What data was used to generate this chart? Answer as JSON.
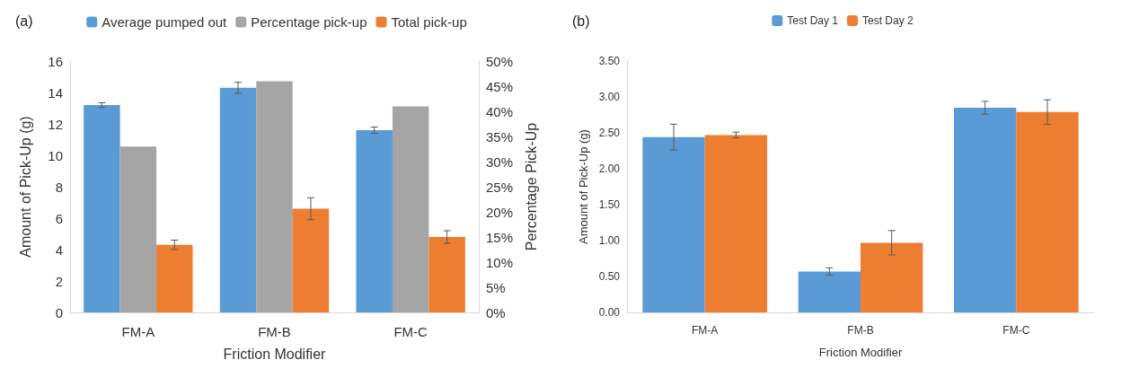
{
  "chart_data": [
    {
      "type": "bar",
      "title": "(a)",
      "xlabel": "Friction Modifier",
      "ylabel": "Amount of Pick-Up (g)",
      "y2label": "Percentage Pick-Up",
      "categories": [
        "FM-A",
        "FM-B",
        "FM-C"
      ],
      "series": [
        {
          "name": "Average pumped out",
          "color": "#5b9bd5",
          "values": [
            13.2,
            14.3,
            11.6
          ],
          "errors": [
            0.15,
            0.35,
            0.2
          ]
        },
        {
          "name": "Percentage pick-up",
          "color": "#a5a5a5",
          "values": [
            33,
            46,
            41
          ],
          "axis": "y2"
        },
        {
          "name": "Total pick-up",
          "color": "#ed7d31",
          "values": [
            4.3,
            6.6,
            4.8
          ],
          "errors": [
            0.3,
            0.7,
            0.4
          ]
        }
      ],
      "ylim": [
        0,
        16
      ],
      "yticks": [
        0,
        2,
        4,
        6,
        8,
        10,
        12,
        14,
        16
      ],
      "y2lim": [
        0,
        50
      ],
      "y2ticks": [
        {
          "value": 0,
          "label": "0%"
        },
        {
          "value": 5,
          "label": "5%"
        },
        {
          "value": 10,
          "label": "10%"
        },
        {
          "value": 15,
          "label": "15%"
        },
        {
          "value": 20,
          "label": "20%"
        },
        {
          "value": 25,
          "label": "25%"
        },
        {
          "value": 30,
          "label": "30%"
        },
        {
          "value": 35,
          "label": "35%"
        },
        {
          "value": 40,
          "label": "40%"
        },
        {
          "value": 45,
          "label": "45%"
        },
        {
          "value": 50,
          "label": "50%"
        }
      ],
      "grid": false,
      "legend": "top"
    },
    {
      "type": "bar",
      "title": "(b)",
      "xlabel": "Friction Modifier",
      "ylabel": "Amount of Pick-Up (g)",
      "categories": [
        "FM-A",
        "FM-B",
        "FM-C"
      ],
      "series": [
        {
          "name": "Test Day 1",
          "color": "#5b9bd5",
          "values": [
            2.44,
            0.57,
            2.85
          ],
          "errors": [
            0.18,
            0.05,
            0.09
          ]
        },
        {
          "name": "Test Day 2",
          "color": "#ed7d31",
          "values": [
            2.47,
            0.97,
            2.79
          ],
          "errors": [
            0.04,
            0.17,
            0.17
          ]
        }
      ],
      "ylim": [
        0,
        3.5
      ],
      "yticks": [
        {
          "value": 0,
          "label": "0.00"
        },
        {
          "value": 0.5,
          "label": "0.50"
        },
        {
          "value": 1,
          "label": "1.00"
        },
        {
          "value": 1.5,
          "label": "1.50"
        },
        {
          "value": 2,
          "label": "2.00"
        },
        {
          "value": 2.5,
          "label": "2.50"
        },
        {
          "value": 3,
          "label": "3.00"
        },
        {
          "value": 3.5,
          "label": "3.50"
        }
      ],
      "grid": false,
      "legend": "top"
    }
  ]
}
